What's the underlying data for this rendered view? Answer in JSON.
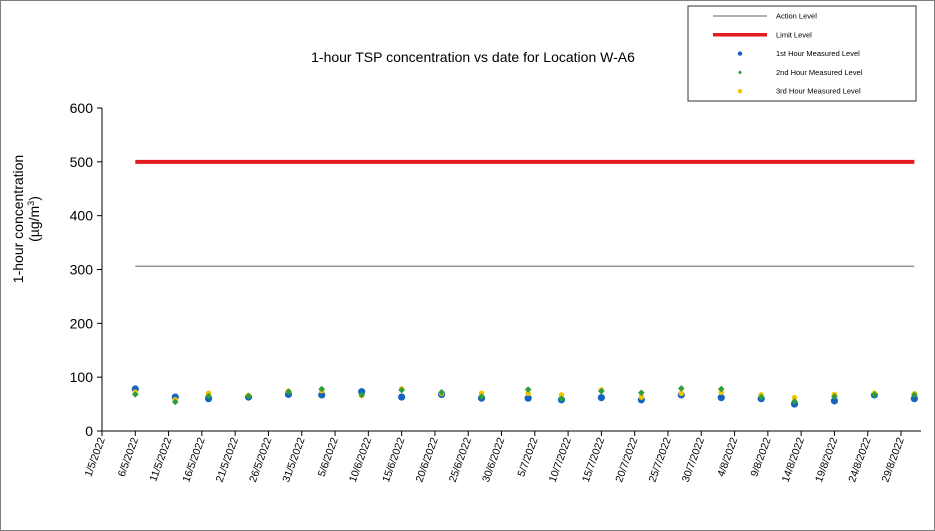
{
  "chart_data": {
    "type": "scatter",
    "title": "1-hour TSP concentration vs date for Location  W-A6",
    "ylabel_line1": "1-hour concentration",
    "ylabel_line2_prefix": "(µg/m",
    "ylabel_line2_sup": "3",
    "ylabel_line2_suffix": ")",
    "ylim": [
      0,
      600
    ],
    "yticks": [
      "0",
      "100",
      "200",
      "300",
      "400",
      "500",
      "600"
    ],
    "xlim": [
      "2022-05-01",
      "2022-09-01"
    ],
    "xticks": [
      "1/5/2022",
      "6/5/2022",
      "11/5/2022",
      "16/5/2022",
      "21/5/2022",
      "26/5/2022",
      "31/5/2022",
      "5/6/2022",
      "10/6/2022",
      "15/6/2022",
      "20/6/2022",
      "25/6/2022",
      "30/6/2022",
      "5/7/2022",
      "10/7/2022",
      "15/7/2022",
      "20/7/2022",
      "25/7/2022",
      "30/7/2022",
      "4/8/2022",
      "9/8/2022",
      "14/8/2022",
      "19/8/2022",
      "24/8/2022",
      "29/8/2022"
    ],
    "grid": false,
    "legend_position": "top-right",
    "reference_lines": [
      {
        "name": "Action Level",
        "value": 306,
        "from": "2022-05-01",
        "to": "2022-08-31",
        "color": "#7f7f7f"
      },
      {
        "name": "Limit Level",
        "value": 500,
        "from": "2022-05-01",
        "to": "2022-08-31",
        "color": "#e41a1c"
      }
    ],
    "x": [
      "2022-05-06",
      "2022-05-12",
      "2022-05-17",
      "2022-05-23",
      "2022-05-29",
      "2022-06-03",
      "2022-06-09",
      "2022-06-15",
      "2022-06-21",
      "2022-06-27",
      "2022-07-04",
      "2022-07-09",
      "2022-07-15",
      "2022-07-21",
      "2022-07-27",
      "2022-08-02",
      "2022-08-08",
      "2022-08-13",
      "2022-08-19",
      "2022-08-25",
      "2022-08-31"
    ],
    "series": [
      {
        "name": "1st Hour Measured Level",
        "color": "#1565c0",
        "marker": "circle",
        "values": [
          78,
          63,
          60,
          63,
          68,
          67,
          73,
          63,
          68,
          61,
          61,
          58,
          62,
          58,
          67,
          62,
          60,
          50,
          56,
          67,
          60
        ]
      },
      {
        "name": "2nd Hour Measured Level",
        "color": "#2e9e3c",
        "marker": "diamond",
        "values": [
          68,
          54,
          65,
          65,
          73,
          78,
          67,
          76,
          72,
          64,
          77,
          60,
          74,
          71,
          79,
          78,
          63,
          55,
          64,
          68,
          67
        ]
      },
      {
        "name": "3rd Hour Measured Level",
        "color": "#f5c400",
        "marker": "circle",
        "values": [
          72,
          58,
          70,
          66,
          74,
          75,
          66,
          78,
          70,
          70,
          70,
          67,
          76,
          63,
          70,
          72,
          67,
          62,
          68,
          70,
          69
        ]
      }
    ]
  }
}
